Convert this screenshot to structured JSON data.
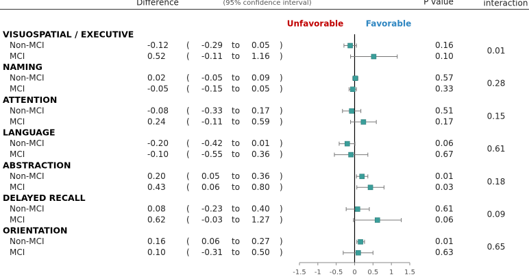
{
  "chart_data": {
    "type": "forest",
    "headers": [
      "Difference",
      "(95% confidence interval)",
      "P value",
      "interaction"
    ],
    "connector": "to",
    "left_label": "Unfavorable",
    "right_label": "Favorable",
    "marker_color": "#3a9e9a",
    "left_color": "#c00000",
    "right_color": "#2e86c1",
    "xlim": [
      -1.5,
      1.5
    ],
    "xticks": [
      -1.5,
      -1,
      -0.5,
      0,
      0.5,
      1,
      1.5
    ],
    "groups": [
      {
        "name": "VISUOSPATIAL / EXECUTIVE",
        "interaction": "0.01",
        "rows": [
          {
            "name": "Non-MCI",
            "values": [
              -0.12,
              -0.29,
              0.05
            ],
            "value_labels": [
              "-0.12",
              "-0.29",
              "0.05"
            ],
            "p": "0.16"
          },
          {
            "name": "MCI",
            "values": [
              0.52,
              -0.11,
              1.16
            ],
            "value_labels": [
              "0.52",
              "-0.11",
              "1.16"
            ],
            "p": "0.10"
          }
        ]
      },
      {
        "name": "NAMING",
        "interaction": "0.28",
        "rows": [
          {
            "name": "Non-MCI",
            "values": [
              0.02,
              -0.05,
              0.09
            ],
            "value_labels": [
              "0.02",
              "-0.05",
              "0.09"
            ],
            "p": "0.57"
          },
          {
            "name": "MCI",
            "values": [
              -0.05,
              -0.15,
              0.05
            ],
            "value_labels": [
              "-0.05",
              "-0.15",
              "0.05"
            ],
            "p": "0.33"
          }
        ]
      },
      {
        "name": "ATTENTION",
        "interaction": "0.15",
        "rows": [
          {
            "name": "Non-MCI",
            "values": [
              -0.08,
              -0.33,
              0.17
            ],
            "value_labels": [
              "-0.08",
              "-0.33",
              "0.17"
            ],
            "p": "0.51"
          },
          {
            "name": "MCI",
            "values": [
              0.24,
              -0.11,
              0.59
            ],
            "value_labels": [
              "0.24",
              "-0.11",
              "0.59"
            ],
            "p": "0.17"
          }
        ]
      },
      {
        "name": "LANGUAGE",
        "interaction": "0.61",
        "rows": [
          {
            "name": "Non-MCI",
            "values": [
              -0.2,
              -0.42,
              0.01
            ],
            "value_labels": [
              "-0.20",
              "-0.42",
              "0.01"
            ],
            "p": "0.06"
          },
          {
            "name": "MCI",
            "values": [
              -0.1,
              -0.55,
              0.36
            ],
            "value_labels": [
              "-0.10",
              "-0.55",
              "0.36"
            ],
            "p": "0.67"
          }
        ]
      },
      {
        "name": "ABSTRACTION",
        "interaction": "0.18",
        "rows": [
          {
            "name": "Non-MCI",
            "values": [
              0.2,
              0.05,
              0.36
            ],
            "value_labels": [
              "0.20",
              "0.05",
              "0.36"
            ],
            "p": "0.01"
          },
          {
            "name": "MCI",
            "values": [
              0.43,
              0.06,
              0.8
            ],
            "value_labels": [
              "0.43",
              "0.06",
              "0.80"
            ],
            "p": "0.03"
          }
        ]
      },
      {
        "name": "DELAYED RECALL",
        "interaction": "0.09",
        "rows": [
          {
            "name": "Non-MCI",
            "values": [
              0.08,
              -0.23,
              0.4
            ],
            "value_labels": [
              "0.08",
              "-0.23",
              "0.40"
            ],
            "p": "0.61"
          },
          {
            "name": "MCI",
            "values": [
              0.62,
              -0.03,
              1.27
            ],
            "value_labels": [
              "0.62",
              "-0.03",
              "1.27"
            ],
            "p": "0.06"
          }
        ]
      },
      {
        "name": "ORIENTATION",
        "interaction": "0.65",
        "rows": [
          {
            "name": "Non-MCI",
            "values": [
              0.16,
              0.06,
              0.27
            ],
            "value_labels": [
              "0.16",
              "0.06",
              "0.27"
            ],
            "p": "0.01"
          },
          {
            "name": "MCI",
            "values": [
              0.1,
              -0.31,
              0.5
            ],
            "value_labels": [
              "0.10",
              "-0.31",
              "0.50"
            ],
            "p": "0.63"
          }
        ]
      }
    ]
  }
}
